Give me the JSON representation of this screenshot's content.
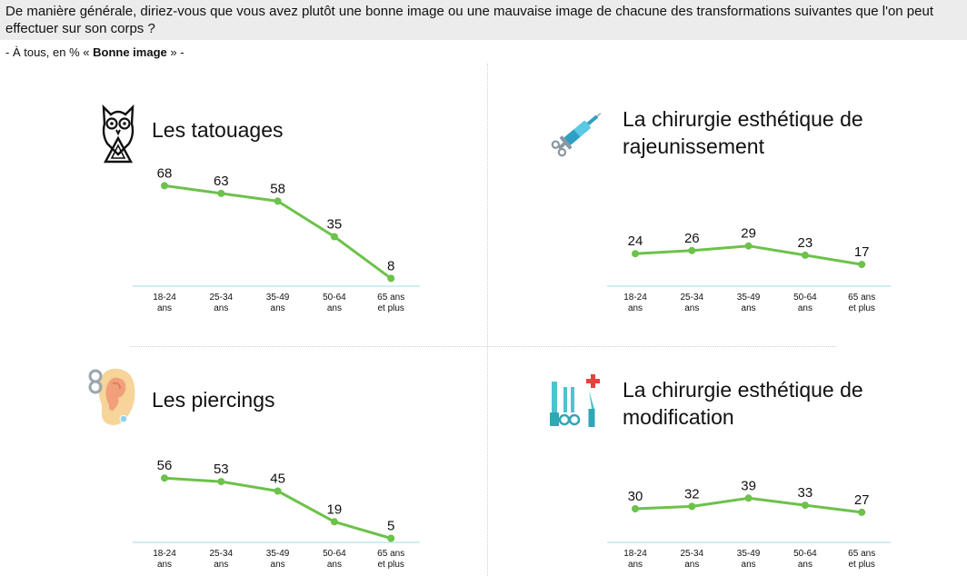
{
  "header": {
    "question": "De manière générale, diriez-vous que vous avez plutôt une bonne image ou une mauvaise image de chacune des transformations suivantes que l'on peut effectuer sur son corps ?",
    "subtitle_prefix": "- À tous, en % « ",
    "subtitle_bold": "Bonne image",
    "subtitle_suffix": " » -"
  },
  "colors": {
    "line": "#6cc24a",
    "axis": "#bfe9ef",
    "header_bg": "#ececec"
  },
  "panels": [
    {
      "title": "Les tatouages",
      "icon": "owl-tattoo-icon"
    },
    {
      "title_line1": "La chirurgie esthétique de",
      "title_line2": "rajeunissement",
      "icon": "syringe-icon"
    },
    {
      "title": "Les piercings",
      "icon": "pierced-ear-icon"
    },
    {
      "title_line1": "La chirurgie esthétique de",
      "title_line2": "modification",
      "icon": "surgical-tools-icon"
    }
  ],
  "chart_data": [
    {
      "type": "line",
      "title": "Les tatouages",
      "categories": [
        "18-24 ans",
        "25-34 ans",
        "35-49 ans",
        "50-64 ans",
        "65 ans et plus"
      ],
      "tick_lines": [
        [
          "18-24",
          "ans"
        ],
        [
          "25-34",
          "ans"
        ],
        [
          "35-49",
          "ans"
        ],
        [
          "50-64",
          "ans"
        ],
        [
          "65 ans",
          "et plus"
        ]
      ],
      "values": [
        68,
        63,
        58,
        35,
        8
      ],
      "ylim": [
        0,
        100
      ]
    },
    {
      "type": "line",
      "title": "La chirurgie esthétique de rajeunissement",
      "categories": [
        "18-24 ans",
        "25-34 ans",
        "35-49 ans",
        "50-64 ans",
        "65 ans et plus"
      ],
      "tick_lines": [
        [
          "18-24",
          "ans"
        ],
        [
          "25-34",
          "ans"
        ],
        [
          "35-49",
          "ans"
        ],
        [
          "50-64",
          "ans"
        ],
        [
          "65 ans",
          "et plus"
        ]
      ],
      "values": [
        24,
        26,
        29,
        23,
        17
      ],
      "ylim": [
        0,
        100
      ]
    },
    {
      "type": "line",
      "title": "Les piercings",
      "categories": [
        "18-24 ans",
        "25-34 ans",
        "35-49 ans",
        "50-64 ans",
        "65 ans et plus"
      ],
      "tick_lines": [
        [
          "18-24",
          "ans"
        ],
        [
          "25-34",
          "ans"
        ],
        [
          "35-49",
          "ans"
        ],
        [
          "50-64",
          "ans"
        ],
        [
          "65 ans",
          "et plus"
        ]
      ],
      "values": [
        56,
        53,
        45,
        19,
        5
      ],
      "ylim": [
        0,
        100
      ]
    },
    {
      "type": "line",
      "title": "La chirurgie esthétique de modification",
      "categories": [
        "18-24 ans",
        "25-34 ans",
        "35-49 ans",
        "50-64 ans",
        "65 ans et plus"
      ],
      "tick_lines": [
        [
          "18-24",
          "ans"
        ],
        [
          "25-34",
          "ans"
        ],
        [
          "35-49",
          "ans"
        ],
        [
          "50-64",
          "ans"
        ],
        [
          "65 ans",
          "et plus"
        ]
      ],
      "values": [
        30,
        32,
        39,
        33,
        27
      ],
      "ylim": [
        0,
        100
      ]
    }
  ]
}
